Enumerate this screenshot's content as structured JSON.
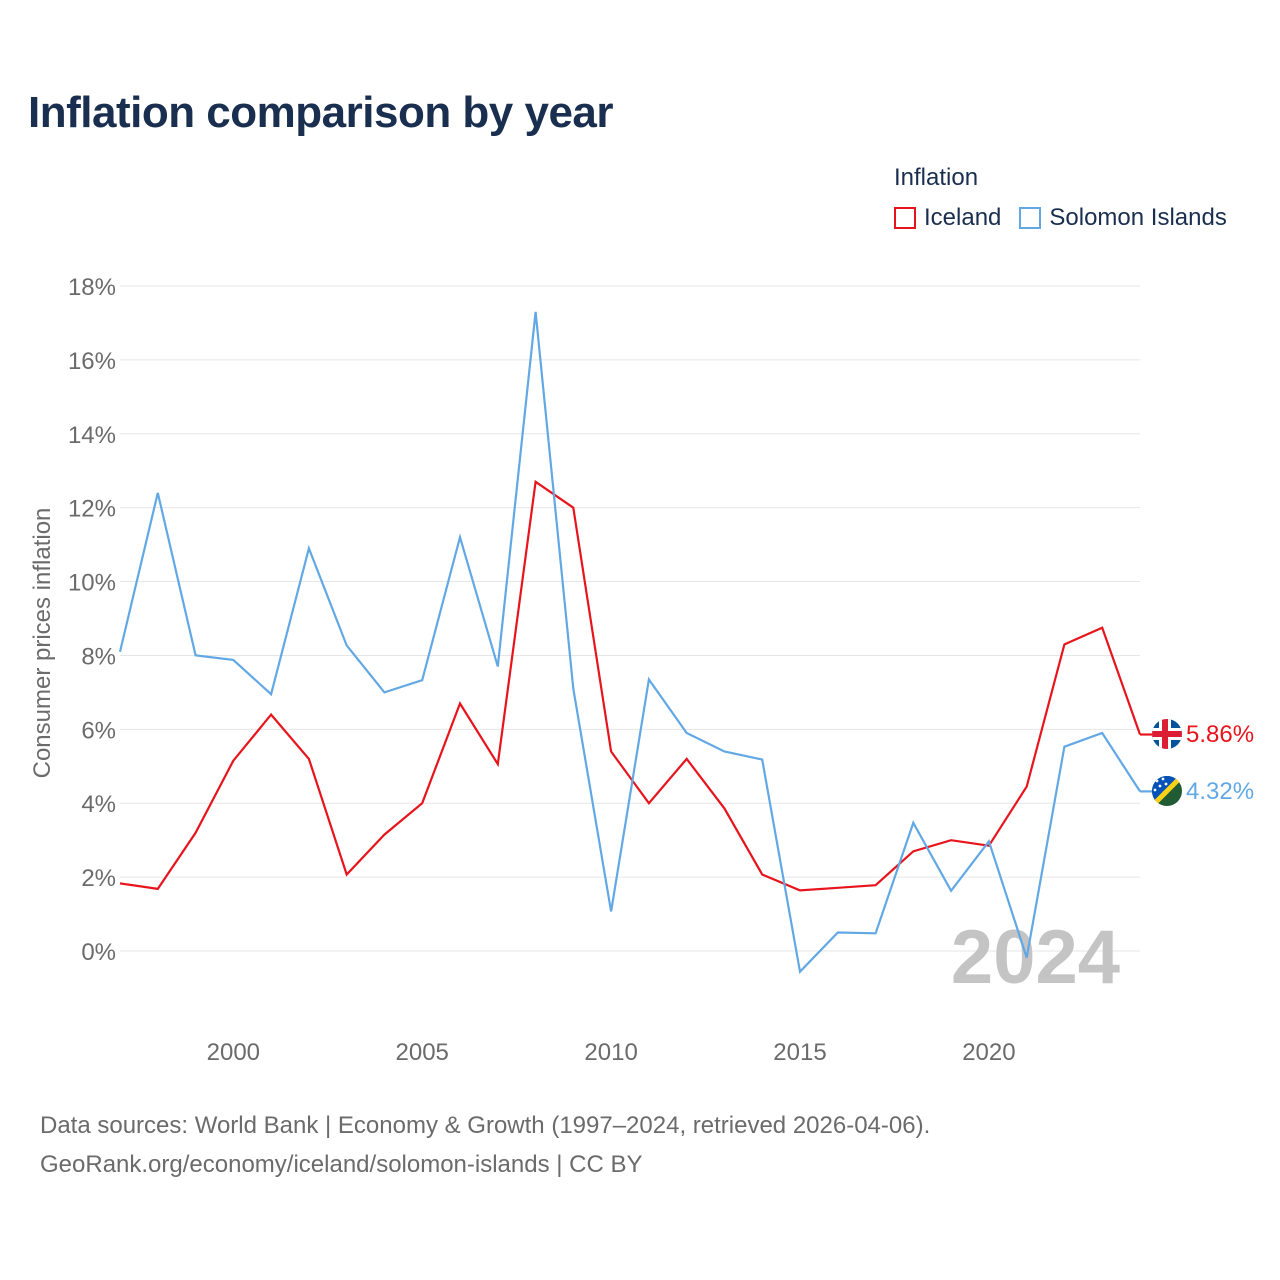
{
  "title": "Inflation comparison by year",
  "legend": {
    "title": "Inflation",
    "items": [
      {
        "label": "Iceland",
        "color": "#e8141c"
      },
      {
        "label": "Solomon Islands",
        "color": "#62a8e5"
      }
    ]
  },
  "footer": {
    "line1": "Data sources: World Bank | Economy & Growth (1997–2024, retrieved 2026-04-06).",
    "line2": "GeoRank.org/economy/iceland/solomon-islands | CC BY"
  },
  "chart_data": {
    "type": "line",
    "title": "Inflation comparison by year",
    "xlabel": "",
    "ylabel": "Consumer prices inflation",
    "xlim": [
      1997,
      2024
    ],
    "ylim": [
      -2,
      18
    ],
    "x_ticks": [
      2000,
      2005,
      2010,
      2015,
      2020
    ],
    "y_ticks": [
      0,
      2,
      4,
      6,
      8,
      10,
      12,
      14,
      16,
      18
    ],
    "y_tick_labels": [
      "0%",
      "2%",
      "4%",
      "6%",
      "8%",
      "10%",
      "12%",
      "14%",
      "16%",
      "18%"
    ],
    "grid": true,
    "legend_position": "top-right",
    "watermark_year": "2024",
    "x": [
      1997,
      1998,
      1999,
      2000,
      2001,
      2002,
      2003,
      2004,
      2005,
      2006,
      2007,
      2008,
      2009,
      2010,
      2011,
      2012,
      2013,
      2014,
      2015,
      2016,
      2017,
      2018,
      2019,
      2020,
      2021,
      2022,
      2023,
      2024
    ],
    "series": [
      {
        "name": "Iceland",
        "color": "#e8141c",
        "end_label": "5.86%",
        "flag": "iceland-flag-icon",
        "values": [
          1.83,
          1.68,
          3.2,
          5.15,
          6.4,
          5.2,
          2.07,
          3.15,
          4.0,
          6.7,
          5.06,
          12.7,
          12.0,
          5.4,
          4.0,
          5.2,
          3.86,
          2.07,
          1.64,
          1.71,
          1.78,
          2.7,
          3.0,
          2.85,
          4.45,
          8.3,
          8.75,
          5.86
        ]
      },
      {
        "name": "Solomon Islands",
        "color": "#62a8e5",
        "end_label": "4.32%",
        "flag": "solomon-islands-flag-icon",
        "values": [
          8.1,
          12.4,
          8.0,
          7.88,
          6.95,
          10.9,
          8.27,
          7.0,
          7.33,
          11.2,
          7.7,
          17.3,
          7.1,
          1.07,
          7.35,
          5.9,
          5.4,
          5.18,
          -0.56,
          0.5,
          0.48,
          3.47,
          1.63,
          2.97,
          -0.18,
          5.53,
          5.9,
          4.32
        ]
      }
    ]
  }
}
